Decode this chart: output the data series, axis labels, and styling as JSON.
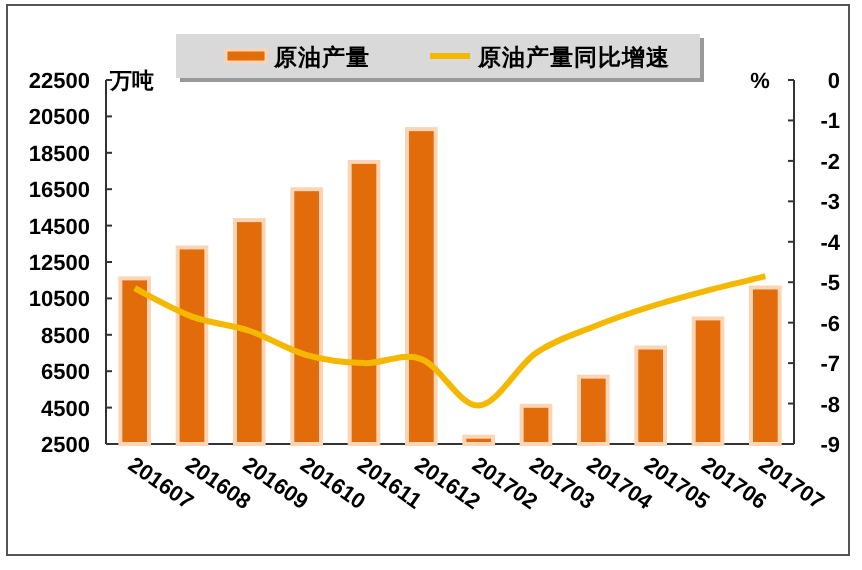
{
  "chart_data": {
    "type": "bar",
    "categories": [
      "201607",
      "201608",
      "201609",
      "201610",
      "201611",
      "201612",
      "201702",
      "201703",
      "201704",
      "201705",
      "201706",
      "201707"
    ],
    "series": [
      {
        "name": "原油产量",
        "color": "#e26b0a",
        "values": [
          11600,
          13300,
          14800,
          16500,
          18000,
          19800,
          2900,
          4600,
          6200,
          7800,
          9400,
          11100
        ]
      },
      {
        "name": "原油产量同比增速",
        "type": "line",
        "axis": "y2",
        "color": "#f5b800",
        "values": [
          -5.15,
          -5.85,
          -6.2,
          -6.8,
          -7.0,
          -6.9,
          -8.05,
          -6.75,
          -6.1,
          -5.6,
          -5.2,
          -4.85
        ]
      }
    ],
    "ylabel": "万吨",
    "y2label": "%",
    "ylim": [
      2500,
      22500
    ],
    "yticks": [
      2500,
      4500,
      6500,
      8500,
      10500,
      12500,
      14500,
      16500,
      18500,
      20500,
      22500
    ],
    "y2lim": [
      -9,
      0
    ],
    "y2ticks": [
      0,
      -1,
      -2,
      -3,
      -4,
      -5,
      -6,
      -7,
      -8,
      -9
    ],
    "grid": false,
    "legend": "top",
    "line_style": "solid",
    "marker": "none"
  }
}
